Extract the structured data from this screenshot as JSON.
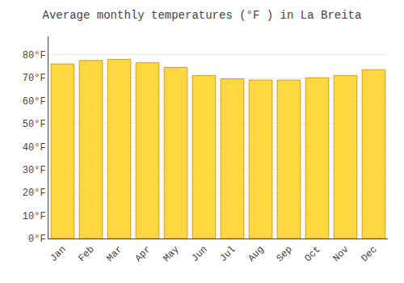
{
  "chart_data": {
    "type": "bar",
    "title": "Average monthly temperatures (°F ) in La Breita",
    "categories": [
      "Jan",
      "Feb",
      "Mar",
      "Apr",
      "May",
      "Jun",
      "Jul",
      "Aug",
      "Sep",
      "Oct",
      "Nov",
      "Dec"
    ],
    "values": [
      76.0,
      77.5,
      78.0,
      76.5,
      74.5,
      71.0,
      69.5,
      69.0,
      69.0,
      70.0,
      71.0,
      73.5
    ],
    "color": "#FFD740",
    "ylim": [
      0,
      88
    ],
    "yticks": [
      {
        "value": 0,
        "label": "0°F"
      },
      {
        "value": 10,
        "label": "10°F"
      },
      {
        "value": 20,
        "label": "20°F"
      },
      {
        "value": 30,
        "label": "30°F"
      },
      {
        "value": 40,
        "label": "40°F"
      },
      {
        "value": 50,
        "label": "50°F"
      },
      {
        "value": 60,
        "label": "60°F"
      },
      {
        "value": 70,
        "label": "70°F"
      },
      {
        "value": 80,
        "label": "80°F"
      }
    ],
    "grid": true
  }
}
